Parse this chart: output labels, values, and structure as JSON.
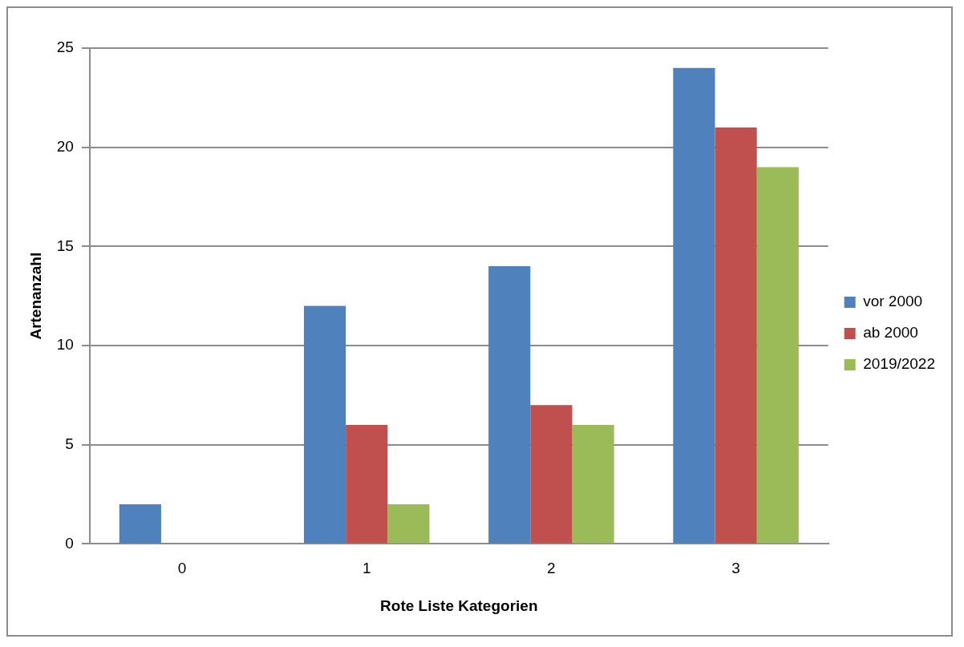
{
  "chart_data": {
    "type": "bar",
    "xlabel": "Rote Liste Kategorien",
    "ylabel": "Artenanzahl",
    "categories": [
      "0",
      "1",
      "2",
      "3"
    ],
    "series": [
      {
        "name": "vor 2000",
        "color": "#4f81bd",
        "values": [
          2,
          12,
          14,
          24
        ]
      },
      {
        "name": "ab 2000",
        "color": "#c0504d",
        "values": [
          0,
          6,
          7,
          21
        ]
      },
      {
        "name": "2019/2022",
        "color": "#9bbb59",
        "values": [
          0,
          2,
          6,
          19
        ]
      }
    ],
    "ylim": [
      0,
      25
    ],
    "yticks": [
      0,
      5,
      10,
      15,
      20,
      25
    ],
    "grid": "y",
    "legend": "right"
  }
}
